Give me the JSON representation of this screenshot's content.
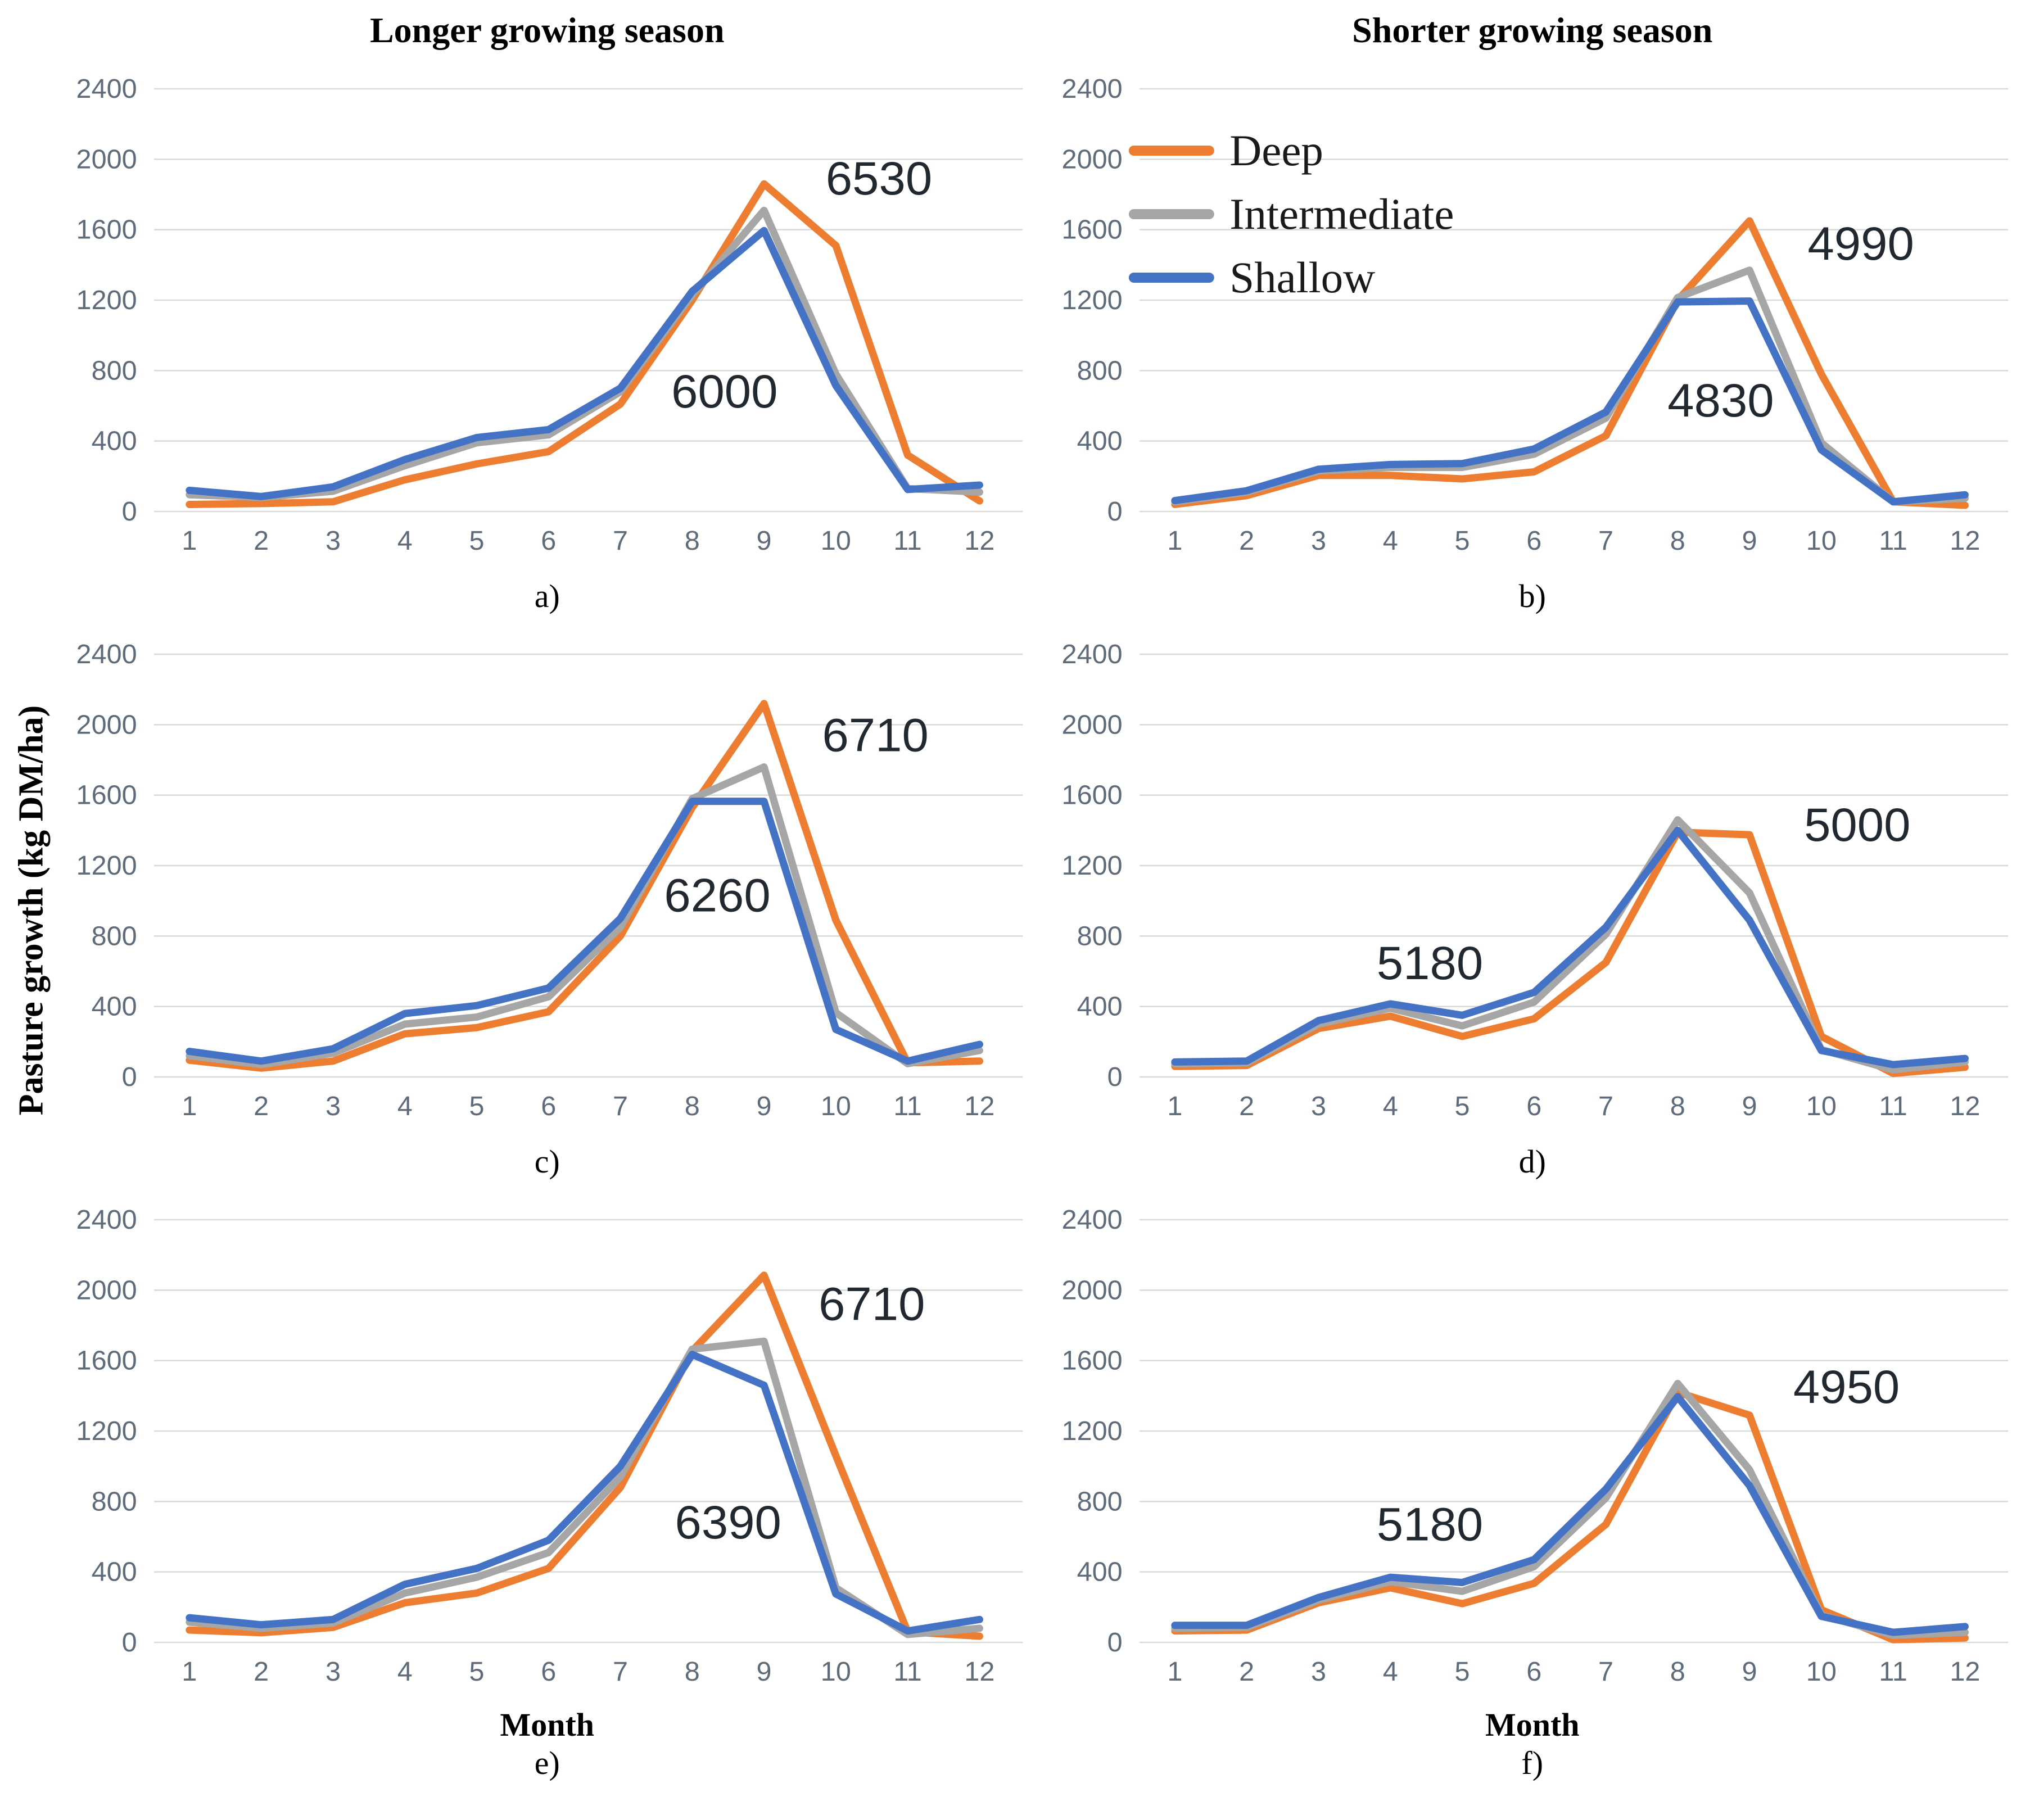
{
  "figure": {
    "column_titles": [
      "Longer growing season",
      "Shorter growing season"
    ],
    "y_axis_label": "Pasture growth  (kg DM/ha)",
    "x_axis_label": "Month",
    "colors": {
      "deep": "#ED7D31",
      "intermediate": "#A6A6A6",
      "shallow": "#4472C4",
      "gridline": "#D9D9D9",
      "tick_labels": "#5E6B7A",
      "annotation_text": "#22282F",
      "legend_text": "#1A1A1A"
    },
    "legend": {
      "entries": [
        {
          "label": "Deep",
          "color": "#ED7D31"
        },
        {
          "label": "Intermediate",
          "color": "#A6A6A6"
        },
        {
          "label": "Shallow",
          "color": "#4472C4"
        }
      ],
      "position": "upper-left of chart b"
    }
  },
  "chart_data": [
    {
      "type": "line",
      "caption": "a)",
      "column_title": "Longer growing season",
      "x": [
        1,
        2,
        3,
        4,
        5,
        6,
        7,
        8,
        9,
        10,
        11,
        12
      ],
      "ylim": [
        0,
        2400
      ],
      "yticks": [
        0,
        400,
        800,
        1200,
        1600,
        2000,
        2400
      ],
      "grid": "horizontal",
      "show_legend": false,
      "series": [
        {
          "name": "Deep",
          "values": [
            40,
            45,
            55,
            180,
            270,
            340,
            610,
            1200,
            1860,
            1510,
            320,
            60
          ]
        },
        {
          "name": "Intermediate",
          "values": [
            95,
            80,
            115,
            260,
            390,
            435,
            680,
            1230,
            1710,
            780,
            130,
            110
          ]
        },
        {
          "name": "Shallow",
          "values": [
            120,
            85,
            140,
            295,
            420,
            465,
            700,
            1250,
            1595,
            715,
            125,
            150
          ]
        }
      ],
      "annotations": [
        {
          "text": "6530",
          "month": 10.6,
          "value": 1800
        },
        {
          "text": "6000",
          "month": 8.45,
          "value": 590
        }
      ]
    },
    {
      "type": "line",
      "caption": "b)",
      "column_title": "Shorter growing season",
      "x": [
        1,
        2,
        3,
        4,
        5,
        6,
        7,
        8,
        9,
        10,
        11,
        12
      ],
      "ylim": [
        0,
        2400
      ],
      "yticks": [
        0,
        400,
        800,
        1200,
        1600,
        2000,
        2400
      ],
      "grid": "horizontal",
      "show_legend": true,
      "series": [
        {
          "name": "Deep",
          "values": [
            40,
            90,
            205,
            205,
            185,
            225,
            430,
            1200,
            1650,
            780,
            55,
            35
          ]
        },
        {
          "name": "Intermediate",
          "values": [
            55,
            110,
            230,
            250,
            250,
            325,
            530,
            1215,
            1370,
            390,
            55,
            75
          ]
        },
        {
          "name": "Shallow",
          "values": [
            62,
            118,
            240,
            267,
            272,
            355,
            565,
            1190,
            1195,
            350,
            55,
            95
          ]
        }
      ],
      "annotations": [
        {
          "text": "4990",
          "month": 10.55,
          "value": 1430
        },
        {
          "text": "4830",
          "month": 8.6,
          "value": 540
        }
      ]
    },
    {
      "type": "line",
      "caption": "c)",
      "column_title": "Longer growing season",
      "x": [
        1,
        2,
        3,
        4,
        5,
        6,
        7,
        8,
        9,
        10,
        11,
        12
      ],
      "ylim": [
        0,
        2400
      ],
      "yticks": [
        0,
        400,
        800,
        1200,
        1600,
        2000,
        2400
      ],
      "grid": "horizontal",
      "show_legend": false,
      "series": [
        {
          "name": "Deep",
          "values": [
            95,
            50,
            90,
            245,
            280,
            370,
            800,
            1530,
            2120,
            890,
            80,
            90
          ]
        },
        {
          "name": "Intermediate",
          "values": [
            120,
            70,
            135,
            300,
            340,
            455,
            850,
            1580,
            1760,
            365,
            75,
            150
          ]
        },
        {
          "name": "Shallow",
          "values": [
            145,
            90,
            160,
            360,
            405,
            505,
            900,
            1565,
            1565,
            270,
            90,
            185
          ]
        }
      ],
      "annotations": [
        {
          "text": "6710",
          "month": 10.55,
          "value": 1850
        },
        {
          "text": "6260",
          "month": 8.35,
          "value": 940
        }
      ]
    },
    {
      "type": "line",
      "caption": "d)",
      "column_title": "Shorter growing season",
      "x": [
        1,
        2,
        3,
        4,
        5,
        6,
        7,
        8,
        9,
        10,
        11,
        12
      ],
      "ylim": [
        0,
        2400
      ],
      "yticks": [
        0,
        400,
        800,
        1200,
        1600,
        2000,
        2400
      ],
      "grid": "horizontal",
      "show_legend": false,
      "series": [
        {
          "name": "Deep",
          "values": [
            60,
            65,
            275,
            345,
            230,
            330,
            650,
            1390,
            1375,
            230,
            20,
            55
          ]
        },
        {
          "name": "Intermediate",
          "values": [
            75,
            80,
            300,
            390,
            290,
            425,
            810,
            1460,
            1045,
            155,
            40,
            85
          ]
        },
        {
          "name": "Shallow",
          "values": [
            85,
            90,
            320,
            415,
            350,
            480,
            850,
            1400,
            890,
            150,
            70,
            105
          ]
        }
      ],
      "annotations": [
        {
          "text": "5180",
          "month": 4.55,
          "value": 555
        },
        {
          "text": "5000",
          "month": 10.5,
          "value": 1340
        }
      ]
    },
    {
      "type": "line",
      "caption": "e)",
      "column_title": "Longer growing season",
      "x": [
        1,
        2,
        3,
        4,
        5,
        6,
        7,
        8,
        9,
        10,
        11,
        12
      ],
      "ylim": [
        0,
        2400
      ],
      "yticks": [
        0,
        400,
        800,
        1200,
        1600,
        2000,
        2400
      ],
      "grid": "horizontal",
      "show_legend": false,
      "has_month_label": true,
      "series": [
        {
          "name": "Deep",
          "values": [
            70,
            55,
            85,
            225,
            280,
            420,
            880,
            1655,
            2085,
            1060,
            60,
            35
          ]
        },
        {
          "name": "Intermediate",
          "values": [
            115,
            80,
            110,
            280,
            370,
            510,
            940,
            1665,
            1710,
            310,
            45,
            80
          ]
        },
        {
          "name": "Shallow",
          "values": [
            140,
            100,
            130,
            330,
            420,
            580,
            1000,
            1635,
            1460,
            275,
            65,
            130
          ]
        }
      ],
      "annotations": [
        {
          "text": "6710",
          "month": 10.5,
          "value": 1830
        },
        {
          "text": "6390",
          "month": 8.5,
          "value": 590
        }
      ]
    },
    {
      "type": "line",
      "caption": "f)",
      "column_title": "Shorter growing season",
      "x": [
        1,
        2,
        3,
        4,
        5,
        6,
        7,
        8,
        9,
        10,
        11,
        12
      ],
      "ylim": [
        0,
        2400
      ],
      "yticks": [
        0,
        400,
        800,
        1200,
        1600,
        2000,
        2400
      ],
      "grid": "horizontal",
      "show_legend": false,
      "has_month_label": true,
      "series": [
        {
          "name": "Deep",
          "values": [
            65,
            70,
            225,
            310,
            220,
            335,
            670,
            1420,
            1290,
            185,
            15,
            25
          ]
        },
        {
          "name": "Intermediate",
          "values": [
            80,
            85,
            240,
            345,
            290,
            430,
            820,
            1470,
            980,
            155,
            40,
            57
          ]
        },
        {
          "name": "Shallow",
          "values": [
            97,
            97,
            255,
            370,
            340,
            470,
            870,
            1395,
            890,
            148,
            57,
            90
          ]
        }
      ],
      "annotations": [
        {
          "text": "5180",
          "month": 4.55,
          "value": 580
        },
        {
          "text": "4950",
          "month": 10.35,
          "value": 1360
        }
      ]
    }
  ]
}
